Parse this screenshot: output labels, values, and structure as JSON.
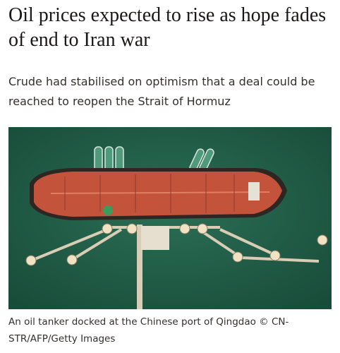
{
  "headline": "Oil prices expected to rise as hope fades of end to Iran war",
  "standfirst": "Crude had stabilised on optimism that a deal could be reached to reopen the Strait of Hormuz",
  "caption": "An oil tanker docked at the Chinese port of Qingdao © CN-STR/AFP/Getty Images"
}
